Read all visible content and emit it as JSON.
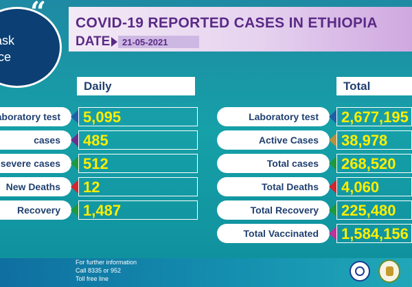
{
  "header": {
    "title": "COVID-19 REPORTED CASES IN ETHIOPIA",
    "date_label": "DATE",
    "date_value": "21-05-2021"
  },
  "badge": {
    "quote": "“",
    "line1": "o Mask",
    "line2": "service"
  },
  "daily": {
    "heading": "Daily",
    "rows": [
      {
        "label": "aboratory test",
        "value": "5,095",
        "color": "#1f5fa8"
      },
      {
        "label": "cases",
        "value": "485",
        "color": "#6a2f8f"
      },
      {
        "label": "severe cases",
        "value": "512",
        "color": "#1e9a3b"
      },
      {
        "label": "New Deaths",
        "value": "12",
        "color": "#d3262e"
      },
      {
        "label": "Recovery",
        "value": "1,487",
        "color": "#1e9a3b"
      }
    ]
  },
  "total": {
    "heading": "Total",
    "rows": [
      {
        "label": "Laboratory test",
        "value": "2,677,195",
        "color": "#1f5fa8"
      },
      {
        "label": "Active Cases",
        "value": "38,978",
        "color": "#b8913a"
      },
      {
        "label": "Total cases",
        "value": "268,520",
        "color": "#1e9a3b"
      },
      {
        "label": "Total Deaths",
        "value": "4,060",
        "color": "#d3262e"
      },
      {
        "label": "Total Recovery",
        "value": "225,480",
        "color": "#1e9a3b"
      },
      {
        "label": "Total Vaccinated",
        "value": "1,584,156",
        "color": "#c2309a"
      }
    ]
  },
  "footer": {
    "line1": "For further information",
    "line2": "Call 8335 or 952",
    "line3": "Toll free line"
  }
}
